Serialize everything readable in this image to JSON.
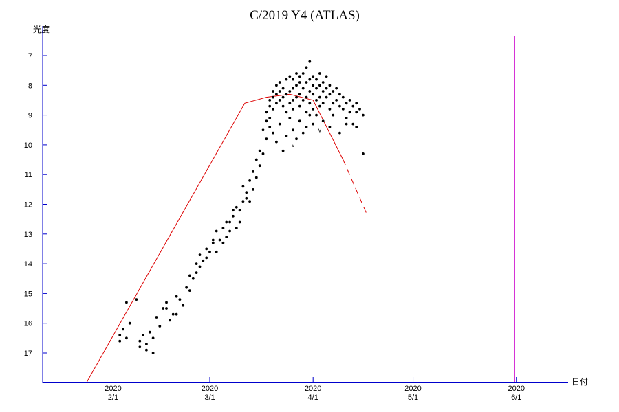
{
  "chart_data": {
    "type": "scatter",
    "title": "C/2019 Y4 (ATLAS)",
    "ylabel": "光度",
    "xlabel": "日付",
    "y_inverted": true,
    "yticks": [
      7,
      8,
      9,
      10,
      11,
      12,
      13,
      14,
      15,
      16,
      17
    ],
    "xticks": [
      {
        "year": "2020",
        "label": "2/1",
        "day": 31
      },
      {
        "year": "2020",
        "label": "3/1",
        "day": 60
      },
      {
        "year": "2020",
        "label": "4/1",
        "day": 91
      },
      {
        "year": "2020",
        "label": "5/1",
        "day": 121
      },
      {
        "year": "2020",
        "label": "6/1",
        "day": 152
      }
    ],
    "colors": {
      "axis": "#0000cc",
      "points": "#000000",
      "fit": "#dd0000",
      "current": "#cc00cc"
    },
    "current_date_day": 151.5,
    "fit_curve_solid": [
      [
        23,
        18
      ],
      [
        70.5,
        8.6
      ],
      [
        77,
        8.4
      ],
      [
        84,
        8.3
      ],
      [
        91,
        8.5
      ],
      [
        100,
        10.5
      ]
    ],
    "fit_curve_dashed": [
      [
        100,
        10.5
      ],
      [
        107,
        12.3
      ]
    ],
    "lower_limits": [
      [
        85,
        10
      ],
      [
        93,
        9.5
      ]
    ],
    "points": [
      [
        33,
        16.6
      ],
      [
        33,
        16.4
      ],
      [
        34,
        16.2
      ],
      [
        35,
        16.5
      ],
      [
        35,
        15.3
      ],
      [
        36,
        16
      ],
      [
        38,
        15.2
      ],
      [
        39,
        16.8
      ],
      [
        39,
        16.6
      ],
      [
        40,
        16.4
      ],
      [
        41,
        16.9
      ],
      [
        41,
        16.7
      ],
      [
        43,
        16.5
      ],
      [
        43,
        17
      ],
      [
        42,
        16.3
      ],
      [
        44,
        15.8
      ],
      [
        45,
        16.1
      ],
      [
        46,
        15.5
      ],
      [
        47,
        15.5
      ],
      [
        47,
        15.3
      ],
      [
        48,
        15.9
      ],
      [
        49,
        15.7
      ],
      [
        50,
        15.7
      ],
      [
        50,
        15.1
      ],
      [
        51,
        15.2
      ],
      [
        52,
        15.4
      ],
      [
        53,
        14.8
      ],
      [
        54,
        14.4
      ],
      [
        54,
        14.9
      ],
      [
        55,
        14.5
      ],
      [
        56,
        14.3
      ],
      [
        56,
        14
      ],
      [
        57,
        14.1
      ],
      [
        57,
        13.7
      ],
      [
        58,
        13.9
      ],
      [
        59,
        13.8
      ],
      [
        59,
        13.5
      ],
      [
        60,
        13.6
      ],
      [
        61,
        13.2
      ],
      [
        61,
        13.3
      ],
      [
        62,
        12.9
      ],
      [
        62,
        13.6
      ],
      [
        63,
        13.2
      ],
      [
        64,
        12.8
      ],
      [
        64,
        13.3
      ],
      [
        65,
        13.1
      ],
      [
        65,
        12.6
      ],
      [
        66,
        12.6
      ],
      [
        66,
        12.9
      ],
      [
        67,
        12.4
      ],
      [
        67,
        12.2
      ],
      [
        68,
        12.1
      ],
      [
        68,
        12.8
      ],
      [
        69,
        12.6
      ],
      [
        69,
        12.2
      ],
      [
        70,
        11.9
      ],
      [
        70,
        11.4
      ],
      [
        71,
        11.6
      ],
      [
        71,
        11.8
      ],
      [
        72,
        11.2
      ],
      [
        72,
        11.9
      ],
      [
        73,
        11.5
      ],
      [
        73,
        10.9
      ],
      [
        74,
        11.1
      ],
      [
        74,
        10.5
      ],
      [
        75,
        10.7
      ],
      [
        75,
        10.2
      ],
      [
        76,
        10.3
      ],
      [
        76,
        9.5
      ],
      [
        77,
        9.8
      ],
      [
        77,
        9.2
      ],
      [
        77,
        8.9
      ],
      [
        78,
        9.1
      ],
      [
        78,
        8.7
      ],
      [
        78,
        8.5
      ],
      [
        79,
        8.8
      ],
      [
        79,
        8.4
      ],
      [
        79,
        8.2
      ],
      [
        80,
        8.6
      ],
      [
        80,
        8.3
      ],
      [
        80,
        8.0
      ],
      [
        81,
        8.5
      ],
      [
        81,
        8.2
      ],
      [
        81,
        7.9
      ],
      [
        82,
        8.7
      ],
      [
        82,
        8.4
      ],
      [
        82,
        8.1
      ],
      [
        83,
        8.9
      ],
      [
        83,
        8.3
      ],
      [
        83,
        7.8
      ],
      [
        84,
        8.6
      ],
      [
        84,
        8.2
      ],
      [
        84,
        7.7
      ],
      [
        85,
        8.8
      ],
      [
        85,
        8.5
      ],
      [
        85,
        8.1
      ],
      [
        85,
        7.8
      ],
      [
        86,
        8.4
      ],
      [
        86,
        8.0
      ],
      [
        86,
        7.6
      ],
      [
        87,
        8.7
      ],
      [
        87,
        8.3
      ],
      [
        87,
        7.9
      ],
      [
        87,
        7.7
      ],
      [
        88,
        8.5
      ],
      [
        88,
        8.1
      ],
      [
        88,
        7.6
      ],
      [
        89,
        8.9
      ],
      [
        89,
        8.4
      ],
      [
        89,
        7.9
      ],
      [
        89,
        7.4
      ],
      [
        90,
        8.6
      ],
      [
        90,
        8.2
      ],
      [
        90,
        7.8
      ],
      [
        90,
        7.2
      ],
      [
        91,
        8.8
      ],
      [
        91,
        8.3
      ],
      [
        91,
        8.0
      ],
      [
        91,
        7.7
      ],
      [
        92,
        8.5
      ],
      [
        92,
        8.1
      ],
      [
        92,
        7.8
      ],
      [
        93,
        8.7
      ],
      [
        93,
        8.4
      ],
      [
        93,
        8.0
      ],
      [
        93,
        7.6
      ],
      [
        94,
        8.6
      ],
      [
        94,
        8.2
      ],
      [
        94,
        7.9
      ],
      [
        95,
        8.4
      ],
      [
        95,
        8.1
      ],
      [
        95,
        7.7
      ],
      [
        96,
        8.8
      ],
      [
        96,
        8.3
      ],
      [
        96,
        8.0
      ],
      [
        97,
        8.6
      ],
      [
        97,
        8.2
      ],
      [
        98,
        8.5
      ],
      [
        98,
        8.1
      ],
      [
        99,
        8.7
      ],
      [
        99,
        8.3
      ],
      [
        100,
        8.4
      ],
      [
        100,
        8.8
      ],
      [
        101,
        8.6
      ],
      [
        101,
        9.1
      ],
      [
        102,
        8.9
      ],
      [
        102,
        8.5
      ],
      [
        103,
        8.7
      ],
      [
        103,
        9.3
      ],
      [
        104,
        8.9
      ],
      [
        104,
        8.6
      ],
      [
        105,
        8.8
      ],
      [
        78,
        9.4
      ],
      [
        79,
        9.6
      ],
      [
        80,
        9.9
      ],
      [
        81,
        9.3
      ],
      [
        82,
        10.2
      ],
      [
        83,
        9.7
      ],
      [
        84,
        9.1
      ],
      [
        85,
        9.5
      ],
      [
        86,
        9.8
      ],
      [
        87,
        9.2
      ],
      [
        88,
        9.6
      ],
      [
        89,
        9.4
      ],
      [
        90,
        9.0
      ],
      [
        91,
        9.3
      ],
      [
        92,
        9.0
      ],
      [
        94,
        9.2
      ],
      [
        96,
        9.4
      ],
      [
        97,
        9.0
      ],
      [
        99,
        9.6
      ],
      [
        101,
        9.3
      ],
      [
        104,
        9.4
      ],
      [
        106,
        9.0
      ],
      [
        106,
        10.3
      ]
    ]
  }
}
